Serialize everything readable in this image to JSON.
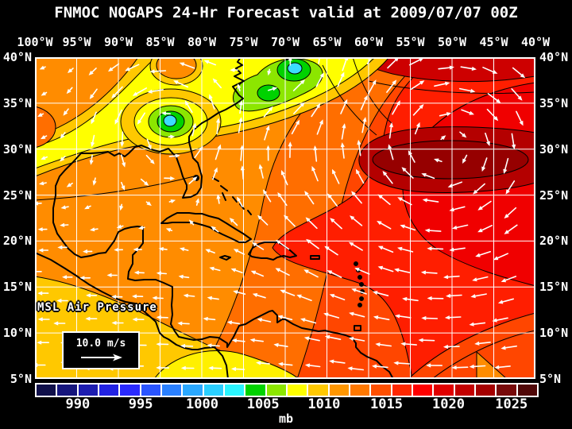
{
  "title": "FNMOC NOGAPS 24-Hr Forecast valid at 2009/07/07 00Z",
  "axes": {
    "lon_labels": [
      "100°W",
      "95°W",
      "90°W",
      "85°W",
      "80°W",
      "75°W",
      "70°W",
      "65°W",
      "60°W",
      "55°W",
      "50°W",
      "45°W",
      "40°W"
    ],
    "lat_labels": [
      "40°N",
      "35°N",
      "30°N",
      "25°N",
      "20°N",
      "15°N",
      "10°N",
      "5°N"
    ]
  },
  "legend": {
    "field_label": "MSL Air Pressure",
    "wind_scale_label": "10.0 m/s"
  },
  "colorbar": {
    "unit": "mb",
    "ticks": [
      "990",
      "995",
      "1000",
      "1005",
      "1010",
      "1015",
      "1020",
      "1025"
    ],
    "tick_positions_pct": [
      8.5,
      21.0,
      33.2,
      45.3,
      57.4,
      69.8,
      82.1,
      94.6
    ],
    "colors": [
      "#10104A",
      "#16167D",
      "#1C1CB0",
      "#2222E3",
      "#2A2AFF",
      "#2A55FF",
      "#2A80FF",
      "#2AA8FF",
      "#2ACFFF",
      "#2AF5FF",
      "#00D200",
      "#8CE600",
      "#FFFF00",
      "#FFC800",
      "#FF9600",
      "#FF7800",
      "#FF5000",
      "#FF2800",
      "#FF0000",
      "#E10000",
      "#C30000",
      "#A50000",
      "#780A0A",
      "#500808"
    ]
  },
  "chart_data": {
    "type": "heatmap",
    "title": "FNMOC NOGAPS 24-Hr Forecast valid at 2009/07/07 00Z",
    "field": "Mean sea-level air pressure (filled contours, mb) with surface wind vectors",
    "x_axis": {
      "label": "longitude",
      "range_deg_west": [
        100,
        40
      ],
      "tick_step_deg": 5
    },
    "y_axis": {
      "label": "latitude",
      "range_deg_north": [
        5,
        40
      ],
      "tick_step_deg": 5
    },
    "colorbar_ticks_mb": [
      990,
      995,
      1000,
      1005,
      1010,
      1015,
      1020,
      1025
    ],
    "grid": true,
    "legend_position": "bottom",
    "features": {
      "low_centers": [
        {
          "lon_w": 83.7,
          "lat_n": 33.0,
          "approx_mb": 1002,
          "note": "closed low, cyan core over SE United States"
        },
        {
          "lon_w": 68.8,
          "lat_n": 38.6,
          "approx_mb": 1002,
          "note": "closed low, cyan core off New England"
        },
        {
          "lon_w": 72.0,
          "lat_n": 36.1,
          "approx_mb": 1004,
          "note": "weak secondary low"
        }
      ],
      "high_center": {
        "lon_w": 50.2,
        "lat_n": 28.7,
        "approx_mb": 1023,
        "note": "subtropical Atlantic high, dark red core"
      },
      "wind": {
        "reference_speed_mps": 10,
        "pattern": "clockwise flow around Atlantic high; westward trade easterlies south of 25N"
      }
    }
  }
}
